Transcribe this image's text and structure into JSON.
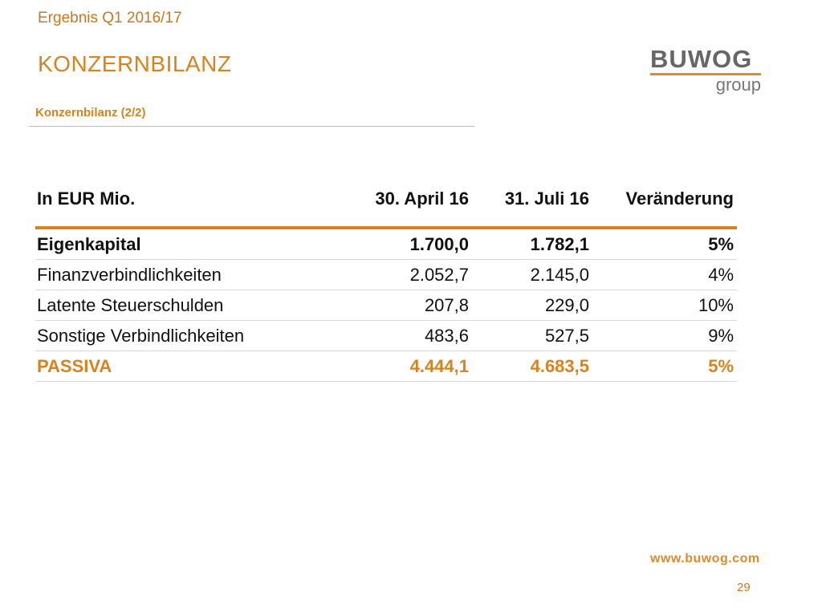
{
  "header": {
    "top_title": "Ergebnis Q1 2016/17",
    "main_title": "KONZERNBILANZ",
    "subtitle": "Konzernbilanz (2/2)"
  },
  "logo": {
    "word": "BUWOG",
    "sub": "group"
  },
  "table": {
    "columns": [
      "In EUR Mio.",
      "30. April 16",
      "31. Juli 16",
      "Veränderung"
    ],
    "rows": [
      {
        "label": "Eigenkapital",
        "v1": "1.700,0",
        "v2": "1.782,1",
        "change": "5%"
      },
      {
        "label": "Finanzverbindlichkeiten",
        "v1": "2.052,7",
        "v2": "2.145,0",
        "change": "4%"
      },
      {
        "label": "Latente Steuerschulden",
        "v1": "207,8",
        "v2": "229,0",
        "change": "10%"
      },
      {
        "label": "Sonstige Verbindlichkeiten",
        "v1": "483,6",
        "v2": "527,5",
        "change": "9%"
      },
      {
        "label": "PASSIVA",
        "v1": "4.444,1",
        "v2": "4.683,5",
        "change": "5%"
      }
    ]
  },
  "footer": {
    "website": "www.buwog.com",
    "page": "29"
  },
  "colors": {
    "accent": "#d9821e",
    "logo_gray": "#666666"
  }
}
